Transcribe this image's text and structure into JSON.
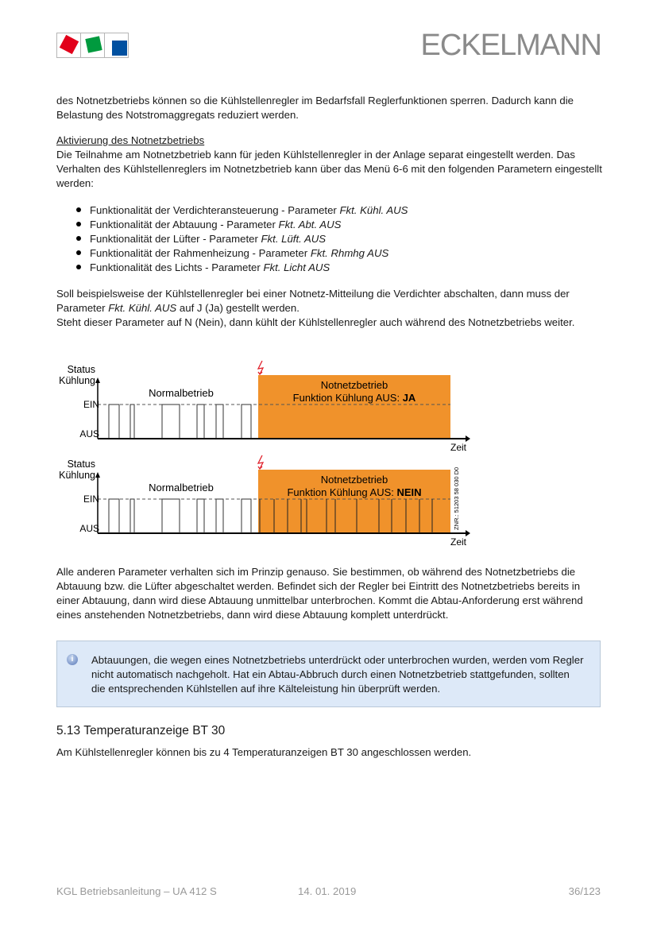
{
  "header": {
    "brand": "ECKELMANN",
    "logo_colors": [
      "#e2001a",
      "#009a3e",
      "#0050a0"
    ]
  },
  "intro": "des Notnetzbetriebs können so die Kühlstellenregler im Bedarfsfall Reglerfunktionen sperren. Dadurch kann die Belastung des Notstromaggregats reduziert werden.",
  "section_heading": "Aktivierung des Notnetzbetriebs",
  "section_text": "Die Teilnahme am Notnetzbetrieb kann für jeden Kühlstellenregler in der Anlage separat eingestellt werden. Das Verhalten des Kühlstellenreglers im Notnetzbetrieb kann über das Menü 6-6 mit den folgenden Parametern eingestellt werden:",
  "bullets": [
    {
      "text": "Funktionalität der Verdichteransteuerung - Parameter ",
      "param": "Fkt. Kühl. AUS"
    },
    {
      "text": "Funktionalität der Abtauung - Parameter ",
      "param": "Fkt. Abt. AUS"
    },
    {
      "text": "Funktionalität der Lüfter - Parameter ",
      "param": "Fkt. Lüft. AUS"
    },
    {
      "text": "Funktionalität der Rahmenheizung - Parameter ",
      "param": "Fkt. Rhmhg AUS"
    },
    {
      "text": "Funktionalität des Lichts - Parameter ",
      "param": "Fkt.  Licht AUS"
    }
  ],
  "example": {
    "p1": "Soll beispielsweise der Kühlstellenregler bei einer Notnetz-Mitteilung die Verdichter abschalten, dann muss der Parameter ",
    "p1_param": "Fkt. Kühl. AUS",
    "p1_end": " auf J (Ja) gestellt werden.",
    "p2": "Steht dieser Parameter auf N (Nein), dann kühlt der Kühlstellenregler auch während des Notnetzbetriebs weiter."
  },
  "diagrams": [
    {
      "y_label1": "Status",
      "y_label2": "Kühlung",
      "ein": "EIN",
      "aus": "AUS",
      "normal": "Normalbetrieb",
      "emerg_title": "Notnetzbetrieb",
      "emerg_func": "Funktion Kühlung AUS: ",
      "emerg_value": "JA",
      "x_label": "Zeit"
    },
    {
      "y_label1": "Status",
      "y_label2": "Kühlung",
      "ein": "EIN",
      "aus": "AUS",
      "normal": "Normalbetrieb",
      "emerg_title": "Notnetzbetrieb",
      "emerg_func": "Funktion Kühlung AUS: ",
      "emerg_value": "NEIN",
      "x_label": "Zeit",
      "ref": "ZNR.: 51203 58 030 D0"
    }
  ],
  "diagram_colors": {
    "emergency": "#f0922b",
    "lightning": "#e0202a"
  },
  "after_text": "Alle anderen Parameter verhalten sich im Prinzip genauso. Sie bestimmen, ob während des Notnetzbetriebs die Abtauung bzw. die Lüfter abgeschaltet werden. Befindet sich der Regler bei Eintritt des Notnetzbetriebs bereits in einer Abtauung, dann wird diese Abtauung unmittelbar unterbrochen. Kommt die Abtau-Anforderung erst während eines anstehenden Notnetzbetriebs, dann wird diese Abtauung komplett unterdrückt.",
  "note": {
    "icon": "info-icon",
    "text": "Abtauungen, die wegen eines Notnetzbetriebs unterdrückt oder unterbrochen wurden, werden vom Regler nicht automatisch nachgeholt. Hat ein Abtau-Abbruch durch einen Notnetzbetrieb stattgefunden, sollten die entsprechenden Kühlstellen auf ihre Kälteleistung hin überprüft werden."
  },
  "section2": {
    "heading": "5.13 Temperaturanzeige BT 30",
    "text": "Am Kühlstellenregler können bis zu 4 Temperaturanzeigen BT 30 angeschlossen werden."
  },
  "footer": {
    "doc": "KGL Betriebsanleitung – UA 412 S",
    "date": "14. 01. 2019",
    "page": "36/123"
  }
}
